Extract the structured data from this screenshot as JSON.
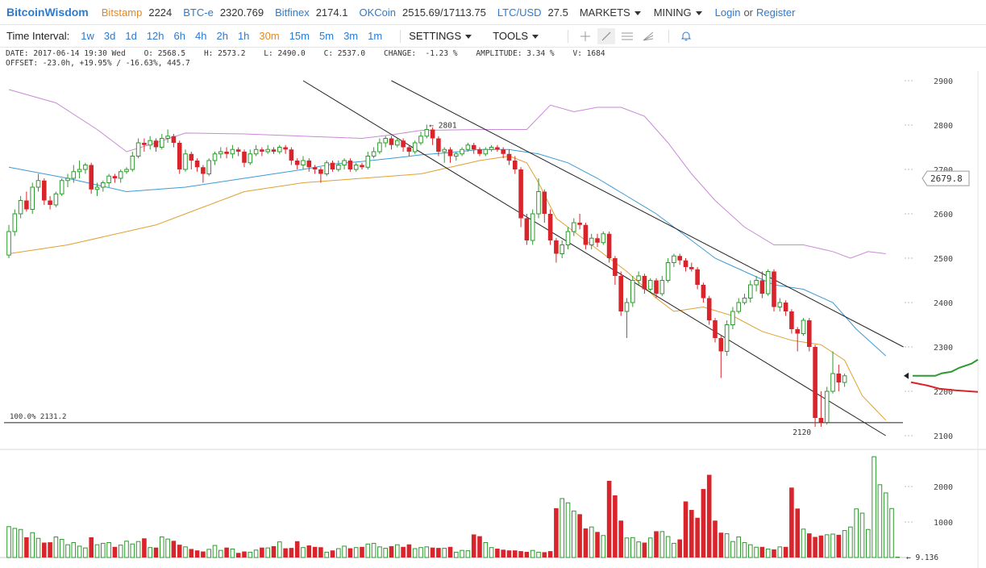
{
  "header": {
    "logo": "BitcoinWisdom",
    "markets": [
      {
        "name": "Bitstamp",
        "value": "2224",
        "color": "#e8871e"
      },
      {
        "name": "BTC-e",
        "value": "2320.769",
        "color": "#2b7bd0"
      },
      {
        "name": "Bitfinex",
        "value": "2174.1",
        "color": "#2b7bd0"
      },
      {
        "name": "OKCoin",
        "value": "2515.69/17113.75",
        "color": "#2b7bd0"
      },
      {
        "name": "LTC/USD",
        "value": "27.5",
        "color": "#2b7bd0"
      }
    ],
    "menus": {
      "markets": "MARKETS",
      "mining": "MINING"
    },
    "login": "Login",
    "or": "or",
    "register": "Register"
  },
  "toolbar": {
    "time_interval_label": "Time Interval:",
    "intervals": [
      "1w",
      "3d",
      "1d",
      "12h",
      "6h",
      "4h",
      "2h",
      "1h",
      "30m",
      "15m",
      "5m",
      "3m",
      "1m"
    ],
    "active_interval": "30m",
    "settings": "SETTINGS",
    "tools": "TOOLS"
  },
  "info": {
    "line1": "DATE: 2017-06-14 19:30 Wed    O: 2568.5    H: 2573.2    L: 2490.0    C: 2537.0    CHANGE:  -1.23 %    AMPLITUDE: 3.34 %    V: 1684",
    "line2": "OFFSET: -23.0h, +19.95% / -16.63%, 445.7"
  },
  "chart_data": {
    "type": "candlestick",
    "price_axis": {
      "ticks": [
        "2900",
        "2800",
        "2700",
        "2600",
        "2500",
        "2400",
        "2300",
        "2200",
        "2100"
      ],
      "range": [
        2100,
        2900
      ]
    },
    "volume_axis": {
      "ticks": [
        "2000",
        "1000"
      ]
    },
    "current_price_label": "2679.8",
    "high_annotation": "← 2801",
    "low_annotation": "2120",
    "fib_label": "100.0% 2131.2",
    "volume_readout": "← 9.136",
    "colors": {
      "up": "#2e9a2e",
      "down": "#d9242b",
      "ma_blue": "#3d9bd3",
      "ma_orange": "#e0a030",
      "boll": "#c98ad6"
    },
    "candles": [
      [
        2507,
        2560,
        2500,
        2575
      ],
      [
        2560,
        2600,
        2550,
        2610
      ],
      [
        2600,
        2630,
        2590,
        2640
      ],
      [
        2630,
        2610,
        2605,
        2650
      ],
      [
        2610,
        2660,
        2600,
        2670
      ],
      [
        2660,
        2675,
        2650,
        2690
      ],
      [
        2675,
        2630,
        2620,
        2680
      ],
      [
        2630,
        2620,
        2610,
        2640
      ],
      [
        2620,
        2645,
        2615,
        2650
      ],
      [
        2645,
        2675,
        2640,
        2680
      ],
      [
        2675,
        2680,
        2660,
        2690
      ],
      [
        2680,
        2695,
        2670,
        2710
      ],
      [
        2695,
        2700,
        2680,
        2720
      ],
      [
        2700,
        2710,
        2690,
        2715
      ],
      [
        2710,
        2655,
        2645,
        2715
      ],
      [
        2655,
        2660,
        2640,
        2670
      ],
      [
        2660,
        2670,
        2650,
        2675
      ],
      [
        2670,
        2685,
        2660,
        2690
      ],
      [
        2685,
        2680,
        2670,
        2690
      ],
      [
        2680,
        2695,
        2670,
        2700
      ],
      [
        2695,
        2700,
        2690,
        2705
      ],
      [
        2700,
        2730,
        2695,
        2740
      ],
      [
        2730,
        2760,
        2725,
        2770
      ],
      [
        2760,
        2755,
        2740,
        2770
      ],
      [
        2755,
        2765,
        2745,
        2775
      ],
      [
        2765,
        2750,
        2740,
        2770
      ],
      [
        2750,
        2770,
        2745,
        2780
      ],
      [
        2770,
        2775,
        2760,
        2790
      ],
      [
        2775,
        2760,
        2750,
        2780
      ],
      [
        2760,
        2700,
        2690,
        2765
      ],
      [
        2700,
        2735,
        2695,
        2745
      ],
      [
        2735,
        2720,
        2700,
        2740
      ],
      [
        2720,
        2705,
        2695,
        2725
      ],
      [
        2705,
        2690,
        2670,
        2710
      ],
      [
        2690,
        2720,
        2685,
        2725
      ],
      [
        2720,
        2735,
        2710,
        2740
      ],
      [
        2735,
        2740,
        2725,
        2750
      ],
      [
        2740,
        2735,
        2725,
        2750
      ],
      [
        2735,
        2745,
        2725,
        2755
      ],
      [
        2745,
        2740,
        2730,
        2750
      ],
      [
        2740,
        2715,
        2705,
        2745
      ],
      [
        2715,
        2735,
        2710,
        2745
      ],
      [
        2735,
        2745,
        2730,
        2755
      ],
      [
        2745,
        2740,
        2730,
        2750
      ],
      [
        2740,
        2745,
        2735,
        2755
      ],
      [
        2745,
        2740,
        2735,
        2750
      ],
      [
        2740,
        2750,
        2735,
        2755
      ],
      [
        2750,
        2745,
        2735,
        2755
      ],
      [
        2745,
        2720,
        2710,
        2750
      ],
      [
        2720,
        2710,
        2700,
        2725
      ],
      [
        2710,
        2720,
        2700,
        2730
      ],
      [
        2720,
        2705,
        2695,
        2725
      ],
      [
        2705,
        2700,
        2690,
        2710
      ],
      [
        2700,
        2690,
        2670,
        2705
      ],
      [
        2690,
        2715,
        2685,
        2720
      ],
      [
        2715,
        2700,
        2695,
        2720
      ],
      [
        2700,
        2710,
        2695,
        2720
      ],
      [
        2710,
        2720,
        2700,
        2725
      ],
      [
        2720,
        2700,
        2695,
        2725
      ],
      [
        2700,
        2710,
        2695,
        2715
      ],
      [
        2710,
        2705,
        2700,
        2715
      ],
      [
        2705,
        2730,
        2700,
        2740
      ],
      [
        2730,
        2740,
        2725,
        2750
      ],
      [
        2740,
        2760,
        2735,
        2770
      ],
      [
        2760,
        2770,
        2750,
        2775
      ],
      [
        2770,
        2755,
        2745,
        2775
      ],
      [
        2755,
        2765,
        2750,
        2770
      ],
      [
        2765,
        2750,
        2740,
        2770
      ],
      [
        2750,
        2740,
        2730,
        2755
      ],
      [
        2740,
        2760,
        2735,
        2765
      ],
      [
        2760,
        2775,
        2755,
        2785
      ],
      [
        2775,
        2790,
        2770,
        2801
      ],
      [
        2790,
        2770,
        2755,
        2795
      ],
      [
        2770,
        2740,
        2730,
        2775
      ],
      [
        2740,
        2745,
        2715,
        2750
      ],
      [
        2745,
        2730,
        2715,
        2750
      ],
      [
        2730,
        2735,
        2720,
        2740
      ],
      [
        2735,
        2745,
        2730,
        2750
      ],
      [
        2745,
        2755,
        2740,
        2760
      ],
      [
        2755,
        2745,
        2735,
        2760
      ],
      [
        2745,
        2735,
        2730,
        2750
      ],
      [
        2735,
        2745,
        2730,
        2750
      ],
      [
        2745,
        2750,
        2740,
        2755
      ],
      [
        2750,
        2745,
        2740,
        2755
      ],
      [
        2745,
        2735,
        2725,
        2750
      ],
      [
        2735,
        2720,
        2710,
        2745
      ],
      [
        2720,
        2700,
        2690,
        2730
      ],
      [
        2700,
        2590,
        2570,
        2705
      ],
      [
        2590,
        2540,
        2530,
        2600
      ],
      [
        2540,
        2600,
        2530,
        2610
      ],
      [
        2600,
        2650,
        2590,
        2680
      ],
      [
        2650,
        2600,
        2580,
        2655
      ],
      [
        2600,
        2540,
        2530,
        2610
      ],
      [
        2540,
        2510,
        2490,
        2545
      ],
      [
        2510,
        2530,
        2500,
        2540
      ],
      [
        2530,
        2560,
        2520,
        2570
      ],
      [
        2560,
        2580,
        2550,
        2590
      ],
      [
        2580,
        2575,
        2565,
        2600
      ],
      [
        2575,
        2530,
        2520,
        2580
      ],
      [
        2530,
        2545,
        2520,
        2555
      ],
      [
        2545,
        2535,
        2525,
        2555
      ],
      [
        2535,
        2555,
        2530,
        2560
      ],
      [
        2555,
        2500,
        2490,
        2560
      ],
      [
        2500,
        2460,
        2440,
        2505
      ],
      [
        2460,
        2380,
        2370,
        2470
      ],
      [
        2380,
        2400,
        2320,
        2410
      ],
      [
        2400,
        2450,
        2390,
        2460
      ],
      [
        2450,
        2460,
        2440,
        2470
      ],
      [
        2460,
        2430,
        2420,
        2465
      ],
      [
        2430,
        2450,
        2425,
        2455
      ],
      [
        2450,
        2420,
        2410,
        2455
      ],
      [
        2420,
        2450,
        2415,
        2460
      ],
      [
        2450,
        2490,
        2445,
        2500
      ],
      [
        2490,
        2505,
        2480,
        2510
      ],
      [
        2505,
        2495,
        2485,
        2510
      ],
      [
        2495,
        2480,
        2470,
        2500
      ],
      [
        2480,
        2475,
        2470,
        2490
      ],
      [
        2475,
        2440,
        2430,
        2480
      ],
      [
        2440,
        2410,
        2400,
        2445
      ],
      [
        2410,
        2360,
        2350,
        2415
      ],
      [
        2360,
        2320,
        2310,
        2365
      ],
      [
        2320,
        2290,
        2230,
        2325
      ],
      [
        2290,
        2350,
        2280,
        2360
      ],
      [
        2350,
        2380,
        2340,
        2390
      ],
      [
        2380,
        2400,
        2375,
        2410
      ],
      [
        2400,
        2410,
        2395,
        2420
      ],
      [
        2410,
        2440,
        2400,
        2450
      ],
      [
        2440,
        2450,
        2425,
        2460
      ],
      [
        2450,
        2420,
        2410,
        2470
      ],
      [
        2420,
        2470,
        2415,
        2475
      ],
      [
        2470,
        2390,
        2380,
        2475
      ],
      [
        2390,
        2400,
        2380,
        2410
      ],
      [
        2400,
        2380,
        2370,
        2405
      ],
      [
        2380,
        2340,
        2330,
        2385
      ],
      [
        2340,
        2330,
        2290,
        2345
      ],
      [
        2330,
        2360,
        2325,
        2365
      ],
      [
        2360,
        2300,
        2290,
        2365
      ],
      [
        2300,
        2140,
        2120,
        2305
      ],
      [
        2140,
        2130,
        2120,
        2200
      ],
      [
        2130,
        2200,
        2125,
        2210
      ],
      [
        2200,
        2240,
        2195,
        2290
      ],
      [
        2240,
        2220,
        2200,
        2260
      ],
      [
        2220,
        2235,
        2210,
        2240
      ]
    ],
    "volumes": [
      870,
      820,
      790,
      570,
      700,
      540,
      420,
      430,
      580,
      510,
      360,
      420,
      320,
      270,
      570,
      360,
      400,
      420,
      300,
      350,
      460,
      380,
      450,
      540,
      280,
      280,
      580,
      520,
      470,
      360,
      300,
      240,
      200,
      170,
      230,
      340,
      200,
      280,
      240,
      130,
      170,
      150,
      210,
      280,
      270,
      320,
      440,
      260,
      270,
      460,
      280,
      340,
      300,
      290,
      150,
      200,
      250,
      320,
      260,
      280,
      300,
      380,
      400,
      300,
      260,
      320,
      360,
      300,
      370,
      250,
      280,
      300,
      280,
      270,
      260,
      300,
      150,
      200,
      190,
      650,
      600,
      420,
      280,
      250,
      220,
      200,
      200,
      180,
      160,
      200,
      150,
      150,
      180,
      1390,
      1660,
      1540,
      1310,
      1220,
      820,
      860,
      720,
      620,
      2160,
      1750,
      1040,
      550,
      560,
      440,
      420,
      550,
      740,
      730,
      590,
      400,
      510,
      1580,
      1340,
      1120,
      1930,
      2330,
      1040,
      700,
      670,
      450,
      580,
      420,
      360,
      290,
      300,
      240,
      230,
      300,
      300,
      1970,
      1380,
      800,
      680,
      580,
      620,
      640,
      660,
      640,
      760,
      860,
      1370,
      1250,
      790,
      2840,
      2050,
      1820,
      1380,
      10
    ],
    "ma_blue": [
      [
        0,
        2705
      ],
      [
        10,
        2680
      ],
      [
        20,
        2650
      ],
      [
        30,
        2660
      ],
      [
        40,
        2680
      ],
      [
        50,
        2700
      ],
      [
        55,
        2712
      ],
      [
        60,
        2718
      ],
      [
        65,
        2725
      ],
      [
        70,
        2733
      ],
      [
        75,
        2738
      ],
      [
        80,
        2745
      ],
      [
        85,
        2745
      ],
      [
        90,
        2735
      ],
      [
        95,
        2715
      ],
      [
        100,
        2680
      ],
      [
        105,
        2640
      ],
      [
        110,
        2600
      ],
      [
        115,
        2550
      ],
      [
        120,
        2500
      ],
      [
        125,
        2470
      ],
      [
        130,
        2440
      ],
      [
        135,
        2430
      ],
      [
        140,
        2400
      ],
      [
        144,
        2340
      ],
      [
        149,
        2280
      ]
    ],
    "ma_orange": [
      [
        0,
        2510
      ],
      [
        10,
        2530
      ],
      [
        20,
        2560
      ],
      [
        25,
        2575
      ],
      [
        30,
        2600
      ],
      [
        40,
        2650
      ],
      [
        50,
        2670
      ],
      [
        60,
        2680
      ],
      [
        70,
        2690
      ],
      [
        75,
        2705
      ],
      [
        80,
        2720
      ],
      [
        85,
        2730
      ],
      [
        88,
        2715
      ],
      [
        90,
        2670
      ],
      [
        93,
        2590
      ],
      [
        96,
        2560
      ],
      [
        100,
        2520
      ],
      [
        105,
        2470
      ],
      [
        110,
        2410
      ],
      [
        113,
        2380
      ],
      [
        118,
        2390
      ],
      [
        123,
        2370
      ],
      [
        128,
        2335
      ],
      [
        133,
        2315
      ],
      [
        138,
        2305
      ],
      [
        142,
        2270
      ],
      [
        145,
        2190
      ],
      [
        149,
        2135
      ]
    ],
    "boll_upper": [
      [
        0,
        2880
      ],
      [
        8,
        2850
      ],
      [
        15,
        2790
      ],
      [
        20,
        2740
      ],
      [
        25,
        2760
      ],
      [
        30,
        2782
      ],
      [
        40,
        2780
      ],
      [
        50,
        2775
      ],
      [
        60,
        2770
      ],
      [
        65,
        2778
      ],
      [
        70,
        2788
      ],
      [
        80,
        2790
      ],
      [
        85,
        2790
      ],
      [
        88,
        2790
      ],
      [
        92,
        2845
      ],
      [
        96,
        2830
      ],
      [
        100,
        2840
      ],
      [
        104,
        2840
      ],
      [
        108,
        2820
      ],
      [
        112,
        2760
      ],
      [
        116,
        2690
      ],
      [
        120,
        2630
      ],
      [
        125,
        2570
      ],
      [
        130,
        2530
      ],
      [
        135,
        2530
      ],
      [
        140,
        2515
      ],
      [
        143,
        2500
      ],
      [
        146,
        2515
      ],
      [
        149,
        2510
      ]
    ],
    "trend_lines": [
      [
        [
          50,
          2900
        ],
        [
          149,
          2100
        ]
      ],
      [
        [
          65,
          2900
        ],
        [
          152,
          2300
        ]
      ]
    ],
    "fib_level": 2131.2
  }
}
